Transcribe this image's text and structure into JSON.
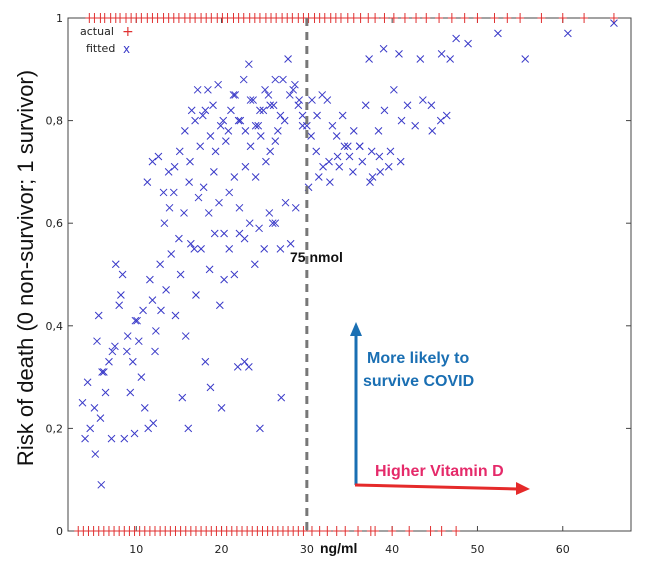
{
  "chart_data": {
    "type": "scatter",
    "ylabel": "Risk of death (0 non-survivor; 1 survivor)",
    "xlabel_unit": "ng/ml",
    "xlim": [
      2,
      68
    ],
    "ylim": [
      0,
      1
    ],
    "x_ticks": [
      10,
      20,
      30,
      40,
      50,
      60
    ],
    "y_ticks": [
      0,
      0.2,
      0.4,
      0.6,
      0.8,
      1
    ],
    "y_tick_labels": [
      "0",
      "0,2",
      "0,4",
      "0,6",
      "0,8",
      "1"
    ],
    "x_tick_labels": [
      "10",
      "20",
      "30",
      "40",
      "50",
      "60"
    ],
    "legend": [
      {
        "label": "actual",
        "marker": "+",
        "color": "#e03030"
      },
      {
        "label": "fitted",
        "marker": "x",
        "color": "#3a3ac8"
      }
    ],
    "threshold": {
      "x": 30,
      "label": "75 nmol"
    },
    "annotations": {
      "survive_line1": "More likely to",
      "survive_line2": "survive COVID",
      "vitamin": "Higher Vitamin D"
    },
    "colors": {
      "actual": "#e03030",
      "fitted": "#3a3ac8",
      "arrow_blue": "#1a6fb3",
      "arrow_red": "#e52a2a",
      "threshold": "#777777"
    },
    "series": [
      {
        "name": "actual_survivors",
        "y": 1,
        "x": [
          4.5,
          5.1,
          5.8,
          6.3,
          7.0,
          7.6,
          8.1,
          8.8,
          9.4,
          10.0,
          10.6,
          11.3,
          11.9,
          12.5,
          13.2,
          13.8,
          14.4,
          15.0,
          15.7,
          16.3,
          16.9,
          17.6,
          18.2,
          18.8,
          19.5,
          20.1,
          20.7,
          21.4,
          22.0,
          22.6,
          23.3,
          23.9,
          24.5,
          25.2,
          25.8,
          26.4,
          27.1,
          27.7,
          28.3,
          29.0,
          29.6,
          30.2,
          30.9,
          31.5,
          32.1,
          32.8,
          33.4,
          34.0,
          34.8,
          35.5,
          36.3,
          37.2,
          38.0,
          39.1,
          40.2,
          41.5,
          42.8,
          44.0,
          45.5,
          47.0,
          48.5,
          50.0,
          52.0,
          53.5,
          55.0,
          57.5,
          60.0,
          62.5,
          66.0
        ]
      },
      {
        "name": "actual_non_survivors",
        "y": 0,
        "x": [
          3.2,
          3.8,
          4.4,
          5.0,
          5.6,
          6.2,
          6.8,
          7.4,
          8.0,
          8.6,
          9.2,
          9.8,
          10.4,
          11.0,
          11.6,
          12.2,
          12.8,
          13.4,
          14.0,
          14.6,
          15.2,
          15.8,
          16.4,
          17.0,
          17.6,
          18.2,
          18.8,
          19.4,
          20.0,
          20.6,
          21.2,
          21.8,
          22.4,
          23.0,
          23.6,
          24.2,
          24.8,
          25.4,
          26.0,
          26.6,
          27.2,
          27.8,
          28.4,
          29.0,
          29.6,
          30.6,
          31.5,
          32.4,
          33.5,
          34.5,
          36.0,
          37.5,
          38.0,
          40.0,
          42.0,
          44.5,
          45.8,
          47.5
        ]
      },
      {
        "name": "fitted",
        "x": [
          4.0,
          3.7,
          4.6,
          5.2,
          5.8,
          6.4,
          5.9,
          6.8,
          4.3,
          5.1,
          5.6,
          6.0,
          7.1,
          7.5,
          8.0,
          8.4,
          8.9,
          9.3,
          7.6,
          8.2,
          9.0,
          9.6,
          10.1,
          10.6,
          11.0,
          11.4,
          11.9,
          12.3,
          10.3,
          10.8,
          11.6,
          12.2,
          12.8,
          13.5,
          14.1,
          14.6,
          15.2,
          15.8,
          16.4,
          17.0,
          17.6,
          18.1,
          18.6,
          19.2,
          19.8,
          20.3,
          20.9,
          21.5,
          22.1,
          22.7,
          23.3,
          23.9,
          24.4,
          25.0,
          25.6,
          26.3,
          26.9,
          27.5,
          28.1,
          28.7,
          13.3,
          13.9,
          14.4,
          15.0,
          15.6,
          16.2,
          16.8,
          17.3,
          17.9,
          18.5,
          19.1,
          19.7,
          20.3,
          20.9,
          21.5,
          22.1,
          22.8,
          23.4,
          24.0,
          24.6,
          25.2,
          25.7,
          26.3,
          11.3,
          11.9,
          12.6,
          13.2,
          13.8,
          14.5,
          15.1,
          15.7,
          16.3,
          16.9,
          17.5,
          18.1,
          18.7,
          19.3,
          19.9,
          20.5,
          21.1,
          21.6,
          22.2,
          22.8,
          23.4,
          24.0,
          24.5,
          25.1,
          25.7,
          26.3,
          26.9,
          27.4,
          28.0,
          28.6,
          29.1,
          16.5,
          17.2,
          17.8,
          18.4,
          19.0,
          19.6,
          20.2,
          20.8,
          21.4,
          22.0,
          22.6,
          23.2,
          23.7,
          24.3,
          24.9,
          25.5,
          26.1,
          26.6,
          27.2,
          27.8,
          28.4,
          29.0,
          29.5,
          30.0,
          30.6,
          31.2,
          31.8,
          32.4,
          33.0,
          33.5,
          34.2,
          34.8,
          35.5,
          36.2,
          36.9,
          37.6,
          38.4,
          39.1,
          40.2,
          41.1,
          41.8,
          42.7,
          43.6,
          44.6,
          45.7,
          46.8,
          47.5,
          48.9,
          52.4,
          55.6,
          60.6,
          66.0,
          44.7,
          46.4,
          37.3,
          39.0,
          40.8,
          43.3,
          45.8,
          30.2,
          31.4,
          32.6,
          33.8,
          35.0,
          36.2,
          37.4,
          38.6,
          39.8,
          41.0,
          30.5,
          31.1,
          31.9,
          32.7,
          33.6,
          34.4,
          35.4,
          36.5,
          37.7,
          38.5,
          39.6,
          9.8,
          12.0,
          16.1,
          20.0,
          23.2,
          27.0,
          24.5,
          21.9,
          8.6,
          6.2,
          5.4,
          7.2,
          9.9,
          12.9,
          15.4,
          18.7,
          22.7,
          26.0,
          29.5
        ],
        "y": [
          0.18,
          0.25,
          0.2,
          0.15,
          0.22,
          0.27,
          0.09,
          0.33,
          0.29,
          0.24,
          0.42,
          0.31,
          0.18,
          0.36,
          0.44,
          0.5,
          0.35,
          0.27,
          0.52,
          0.46,
          0.38,
          0.33,
          0.41,
          0.3,
          0.24,
          0.2,
          0.45,
          0.39,
          0.37,
          0.43,
          0.49,
          0.35,
          0.52,
          0.47,
          0.54,
          0.42,
          0.5,
          0.38,
          0.56,
          0.46,
          0.55,
          0.33,
          0.51,
          0.58,
          0.44,
          0.49,
          0.55,
          0.5,
          0.58,
          0.57,
          0.6,
          0.52,
          0.59,
          0.55,
          0.62,
          0.6,
          0.55,
          0.64,
          0.56,
          0.63,
          0.6,
          0.63,
          0.66,
          0.57,
          0.62,
          0.68,
          0.55,
          0.65,
          0.67,
          0.62,
          0.7,
          0.64,
          0.58,
          0.66,
          0.69,
          0.63,
          0.71,
          0.75,
          0.69,
          0.77,
          0.72,
          0.74,
          0.76,
          0.68,
          0.72,
          0.73,
          0.66,
          0.7,
          0.71,
          0.74,
          0.78,
          0.72,
          0.8,
          0.75,
          0.82,
          0.77,
          0.74,
          0.79,
          0.76,
          0.82,
          0.85,
          0.8,
          0.78,
          0.84,
          0.79,
          0.82,
          0.86,
          0.83,
          0.88,
          0.81,
          0.8,
          0.85,
          0.87,
          0.84,
          0.82,
          0.86,
          0.81,
          0.86,
          0.83,
          0.87,
          0.8,
          0.78,
          0.85,
          0.8,
          0.88,
          0.91,
          0.84,
          0.79,
          0.82,
          0.85,
          0.83,
          0.78,
          0.88,
          0.92,
          0.86,
          0.83,
          0.81,
          0.79,
          0.84,
          0.81,
          0.85,
          0.84,
          0.79,
          0.77,
          0.81,
          0.75,
          0.78,
          0.75,
          0.83,
          0.74,
          0.78,
          0.82,
          0.86,
          0.8,
          0.83,
          0.79,
          0.84,
          0.83,
          0.8,
          0.92,
          0.96,
          0.95,
          0.97,
          0.92,
          0.97,
          0.99,
          0.78,
          0.81,
          0.92,
          0.94,
          0.93,
          0.92,
          0.93,
          0.67,
          0.69,
          0.72,
          0.71,
          0.73,
          0.75,
          0.68,
          0.7,
          0.74,
          0.72,
          0.77,
          0.74,
          0.71,
          0.68,
          0.73,
          0.75,
          0.7,
          0.72,
          0.69,
          0.73,
          0.71,
          0.19,
          0.21,
          0.2,
          0.24,
          0.32,
          0.26,
          0.2,
          0.32,
          0.18,
          0.31,
          0.37,
          0.35,
          0.41,
          0.43,
          0.26,
          0.28,
          0.33,
          0.6,
          0.79
        ]
      }
    ]
  }
}
